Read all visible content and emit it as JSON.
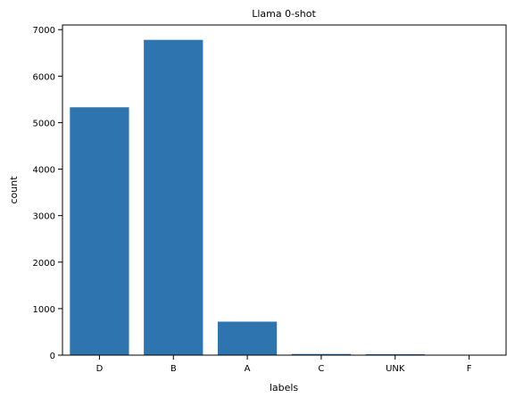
{
  "chart_data": {
    "type": "bar",
    "title": "Llama 0-shot",
    "xlabel": "labels",
    "ylabel": "count",
    "categories": [
      "D",
      "B",
      "A",
      "C",
      "UNK",
      "F"
    ],
    "values": [
      5330,
      6780,
      720,
      25,
      20,
      5
    ],
    "ylim": [
      0,
      7100
    ],
    "yticks": [
      0,
      1000,
      2000,
      3000,
      4000,
      5000,
      6000,
      7000
    ],
    "bar_color": "#2e75b0",
    "grid": false,
    "legend": "none"
  }
}
